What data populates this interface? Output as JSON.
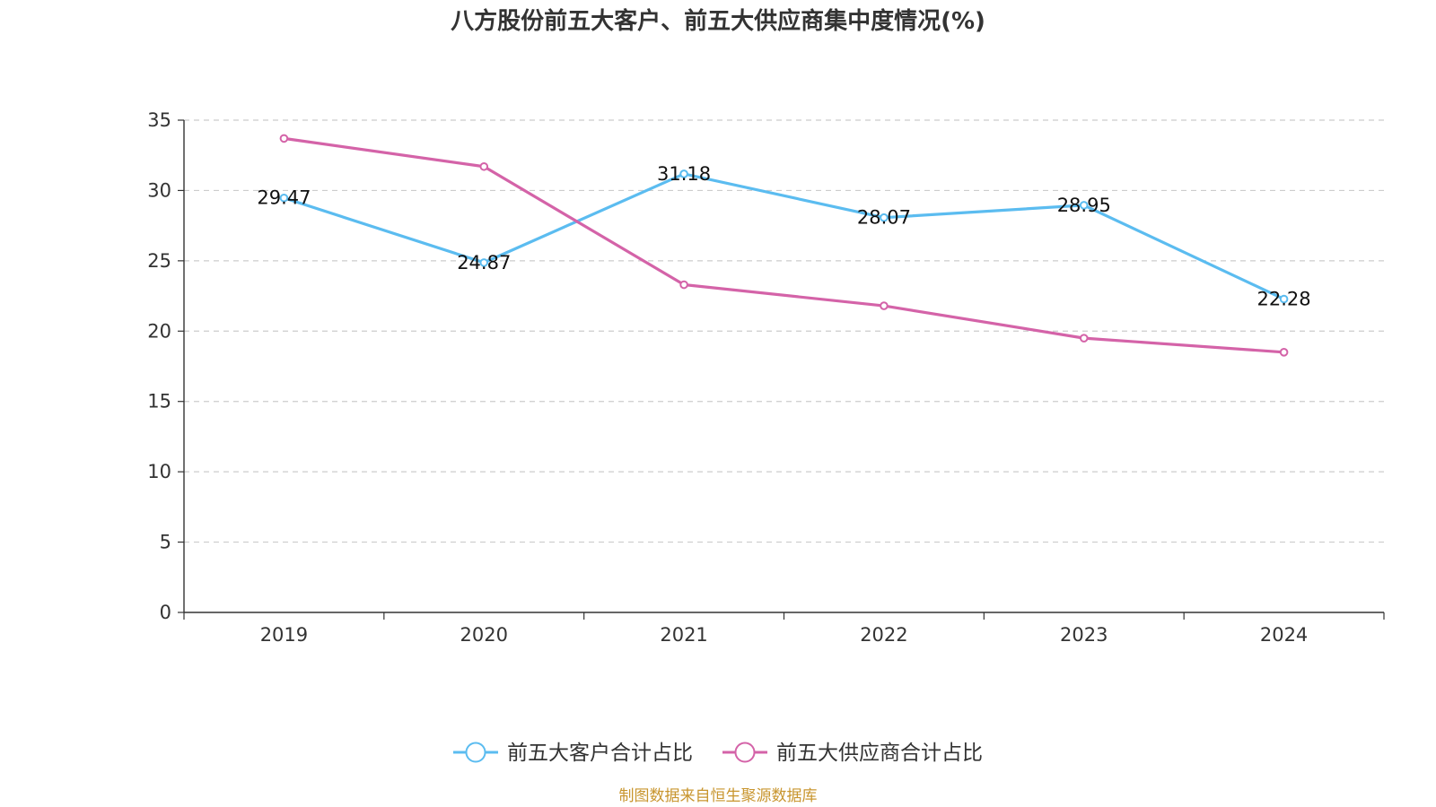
{
  "chart_data": {
    "type": "line",
    "title": "八方股份前五大客户、前五大供应商集中度情况(%)",
    "categories": [
      "2019",
      "2020",
      "2021",
      "2022",
      "2023",
      "2024"
    ],
    "ylim": [
      0,
      35
    ],
    "yticks": [
      0,
      5,
      10,
      15,
      20,
      25,
      30,
      35
    ],
    "grid": true,
    "legend_position": "bottom-center",
    "series": [
      {
        "name": "前五大客户合计占比",
        "color": "#5bbcf0",
        "values": [
          29.47,
          24.87,
          31.18,
          28.07,
          28.95,
          22.28
        ],
        "labels": [
          "29.47",
          "24.87",
          "31.18",
          "28.07",
          "28.95",
          "22.28"
        ],
        "show_labels": true
      },
      {
        "name": "前五大供应商合计占比",
        "color": "#d463a8",
        "values": [
          33.7,
          31.7,
          23.3,
          21.8,
          19.5,
          18.5
        ],
        "show_labels": false
      }
    ]
  },
  "footer": {
    "source_text": "制图数据来自恒生聚源数据库",
    "source_color": "#c8952e"
  }
}
